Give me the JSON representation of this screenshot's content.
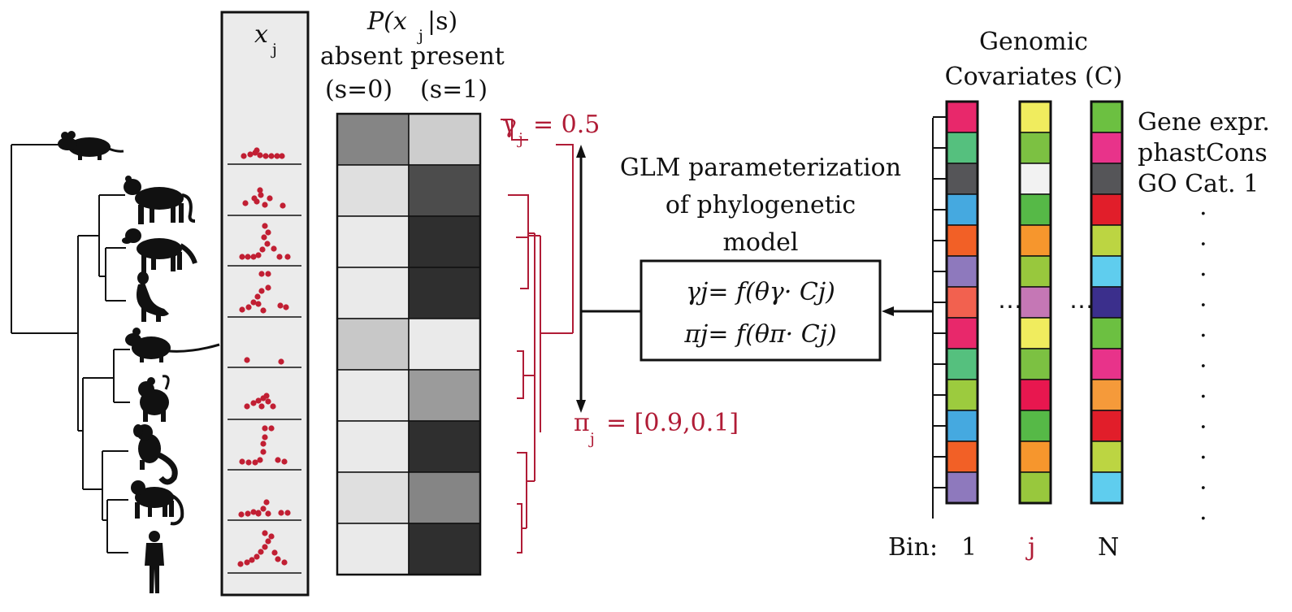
{
  "observed_column": {
    "header_var": "x",
    "header_sub": "j"
  },
  "emission": {
    "header_prefix": "P(",
    "header_var": "x",
    "header_sub": "j",
    "header_suffix": "|s)",
    "col_absent_label": "absent",
    "col_present_label": "present",
    "col_absent_state": "(s=0)",
    "col_present_state": "(s=1)",
    "rows": [
      {
        "absent": 0.5,
        "present": 0.18
      },
      {
        "absent": 0.1,
        "present": 0.75
      },
      {
        "absent": 0.05,
        "present": 0.88
      },
      {
        "absent": 0.05,
        "present": 0.88
      },
      {
        "absent": 0.2,
        "present": 0.05
      },
      {
        "absent": 0.05,
        "present": 0.4
      },
      {
        "absent": 0.05,
        "present": 0.88
      },
      {
        "absent": 0.1,
        "present": 0.5
      },
      {
        "absent": 0.05,
        "present": 0.88
      }
    ]
  },
  "gamma": {
    "symbol": "γ",
    "sub": "j",
    "value": "= 0.5"
  },
  "pi": {
    "symbol": "π",
    "sub": "j",
    "value": "= [0.9,0.1]"
  },
  "glm": {
    "line1": "GLM parameterization",
    "line2": "of phylogenetic",
    "line3": "model",
    "eq1": "γj= f(θγ· Cj)",
    "eq2": "πj= f(θπ· Cj)"
  },
  "covariates": {
    "title_line1": "Genomic",
    "title_line2": "Covariates (C)",
    "bin_prefix": "Bin:",
    "bins": [
      "1",
      "j",
      "N"
    ],
    "ellipsis": "⋯",
    "row_labels": [
      "Gene expr.",
      "phastCons",
      "GO Cat. 1"
    ],
    "vdot": ".",
    "columns": [
      [
        "#e8286b",
        "#55c07e",
        "#555558",
        "#45a9e0",
        "#f26026",
        "#8e79bd",
        "#f2614f",
        "#e8286b",
        "#55c07e",
        "#9ccb3e",
        "#45a9e0",
        "#f26026",
        "#8e79bd"
      ],
      [
        "#f0ec5e",
        "#7cc142",
        "#f2f2f2",
        "#56b947",
        "#f6962d",
        "#98c83d",
        "#c577b5",
        "#f0ec5e",
        "#7cc142",
        "#e8174f",
        "#56b947",
        "#f6962d",
        "#98c83d"
      ],
      [
        "#6cc041",
        "#e8338a",
        "#555558",
        "#e11e2a",
        "#bcd542",
        "#5fcdee",
        "#3b2f8c",
        "#6cc041",
        "#e8338a",
        "#f59a3a",
        "#e11e2a",
        "#bcd542",
        "#5fcdee"
      ]
    ]
  },
  "colors": {
    "accent_red": "#b01c36",
    "dot_red": "#c11f33"
  },
  "icons": [
    "mouse-silhouette-icon",
    "tiger-silhouette-icon",
    "dog-silhouette-icon",
    "ferret-silhouette-icon",
    "rat-silhouette-icon",
    "mouse-lemur-silhouette-icon",
    "marmoset-silhouette-icon",
    "macaque-silhouette-icon",
    "human-silhouette-icon"
  ]
}
